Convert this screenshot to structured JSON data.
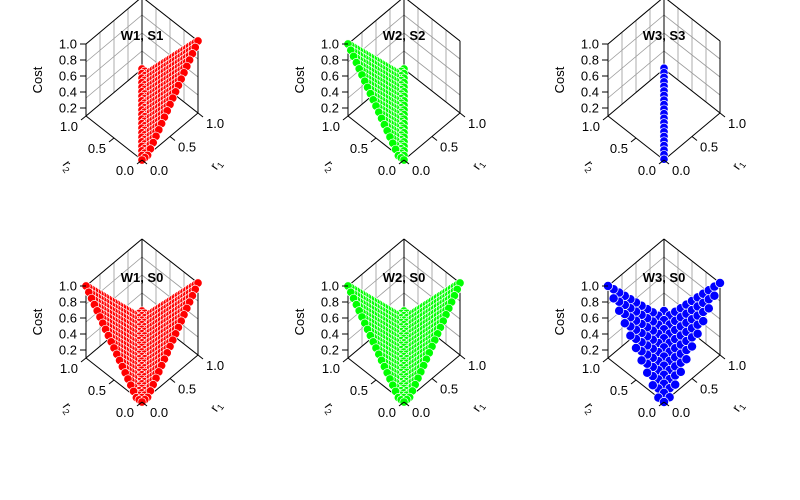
{
  "chart_data": [
    {
      "type": "scatter3d",
      "title": "W1, S1",
      "zlabel": "Cost",
      "xlabel": "r1",
      "ylabel": "r2",
      "xlim": [
        0,
        1
      ],
      "ylim": [
        0,
        1
      ],
      "zlim": [
        0.1,
        1.0
      ],
      "x_ticks": [
        "0.0",
        "0.5",
        "1.0"
      ],
      "y_ticks": [
        "0.0",
        "0.5",
        "1.0"
      ],
      "z_ticks": [
        "0.2",
        "0.4",
        "0.6",
        "0.8",
        "1.0"
      ],
      "color": "#ff0000",
      "surface": "x_minus_y_positive",
      "grid_step": 0.05
    },
    {
      "type": "scatter3d",
      "title": "W2, S2",
      "zlabel": "Cost",
      "xlabel": "r1",
      "ylabel": "r2",
      "xlim": [
        0,
        1
      ],
      "ylim": [
        0,
        1
      ],
      "zlim": [
        0.1,
        1.0
      ],
      "x_ticks": [
        "0.0",
        "0.5",
        "1.0"
      ],
      "y_ticks": [
        "0.0",
        "0.5",
        "1.0"
      ],
      "z_ticks": [
        "0.2",
        "0.4",
        "0.6",
        "0.8",
        "1.0"
      ],
      "color": "#00ff00",
      "surface": "y_minus_x_positive",
      "grid_step": 0.05
    },
    {
      "type": "scatter3d",
      "title": "W3, S3",
      "zlabel": "Cost",
      "xlabel": "r1",
      "ylabel": "r2",
      "xlim": [
        0,
        1
      ],
      "ylim": [
        0,
        1
      ],
      "zlim": [
        0.1,
        1.0
      ],
      "x_ticks": [
        "0.0",
        "0.5",
        "1.0"
      ],
      "y_ticks": [
        "0.0",
        "0.5",
        "1.0"
      ],
      "z_ticks": [
        "0.2",
        "0.4",
        "0.6",
        "0.8",
        "1.0"
      ],
      "color": "#0000ff",
      "surface": "diagonal_line",
      "grid_step": 0.05
    },
    {
      "type": "scatter3d",
      "title": "W1, S0",
      "zlabel": "Cost",
      "xlabel": "r1",
      "ylabel": "r2",
      "xlim": [
        0,
        1
      ],
      "ylim": [
        0,
        1
      ],
      "zlim": [
        0.1,
        1.0
      ],
      "x_ticks": [
        "0.0",
        "0.5",
        "1.0"
      ],
      "y_ticks": [
        "0.0",
        "0.5",
        "1.0"
      ],
      "z_ticks": [
        "0.2",
        "0.4",
        "0.6",
        "0.8",
        "1.0"
      ],
      "color": "#ff0000",
      "surface": "abs_x_minus_y",
      "grid_step": 0.05
    },
    {
      "type": "scatter3d",
      "title": "W2, S0",
      "zlabel": "Cost",
      "xlabel": "r1",
      "ylabel": "r2",
      "xlim": [
        0,
        1
      ],
      "ylim": [
        0,
        1
      ],
      "zlim": [
        0.1,
        1.0
      ],
      "x_ticks": [
        "0.0",
        "0.5",
        "1.0"
      ],
      "y_ticks": [
        "0.0",
        "0.5",
        "1.0"
      ],
      "z_ticks": [
        "0.2",
        "0.4",
        "0.6",
        "0.8",
        "1.0"
      ],
      "color": "#00ff00",
      "surface": "abs_x_minus_y",
      "grid_step": 0.05
    },
    {
      "type": "scatter3d",
      "title": "W3, S0",
      "zlabel": "Cost",
      "xlabel": "r1",
      "ylabel": "r2",
      "xlim": [
        0,
        1
      ],
      "ylim": [
        0,
        1
      ],
      "zlim": [
        0.1,
        1.0
      ],
      "x_ticks": [
        "0.0",
        "0.5",
        "1.0"
      ],
      "y_ticks": [
        "0.0",
        "0.5",
        "1.0"
      ],
      "z_ticks": [
        "0.2",
        "0.4",
        "0.6",
        "0.8",
        "1.0"
      ],
      "color": "#0000ff",
      "surface": "abs_x_minus_y",
      "grid_step": 0.1
    }
  ]
}
